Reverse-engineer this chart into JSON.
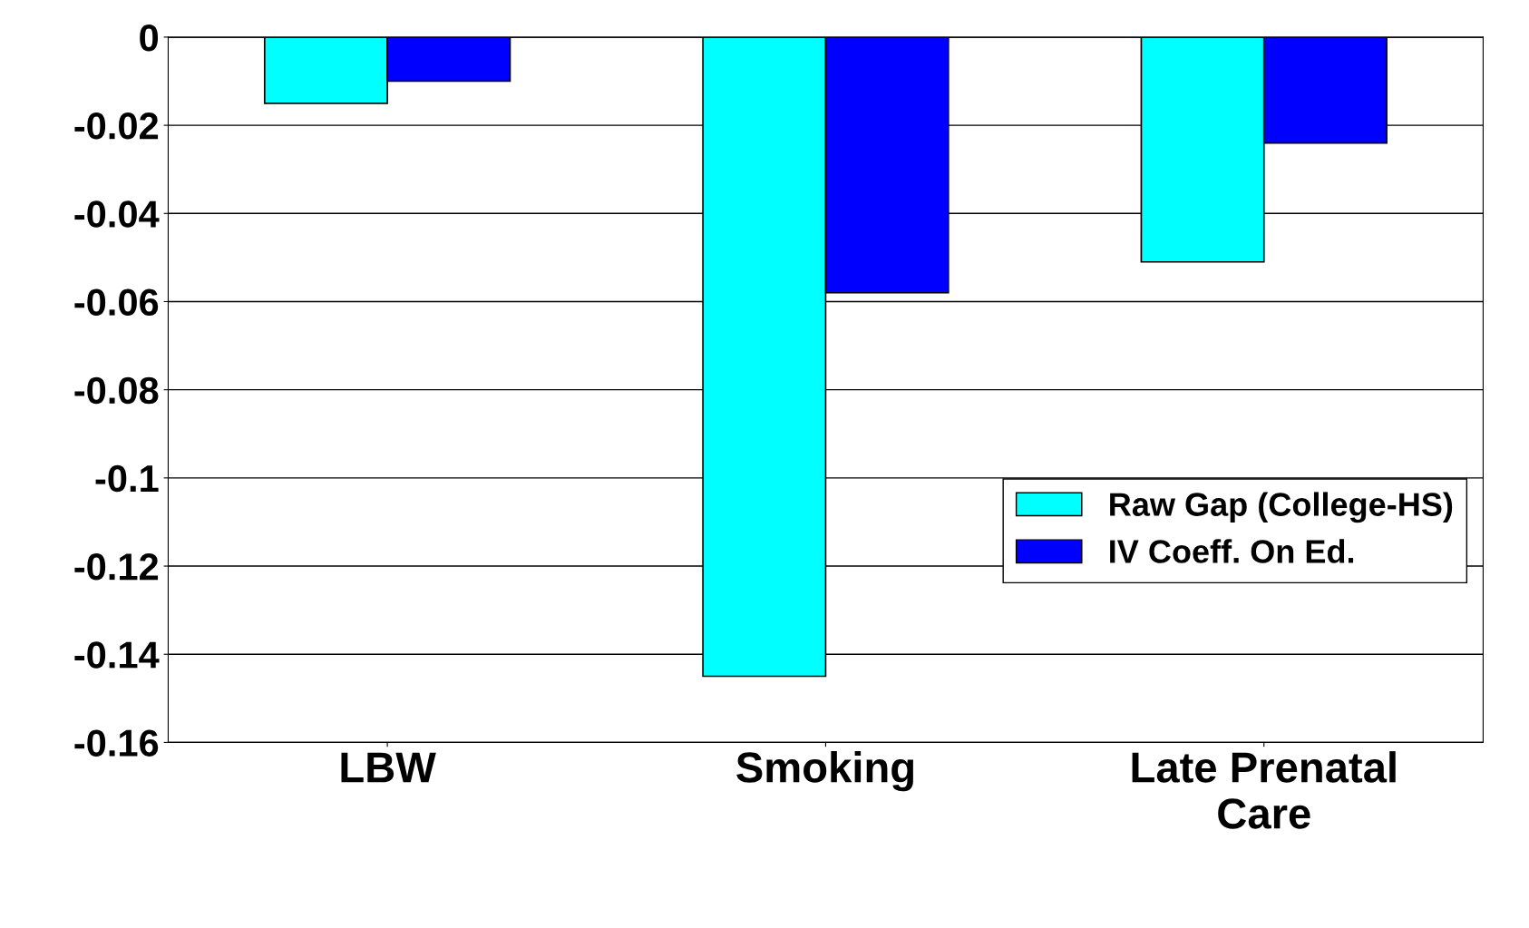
{
  "chart_data": {
    "type": "bar",
    "categories": [
      "LBW",
      "Smoking",
      "Late Prenatal\nCare"
    ],
    "series": [
      {
        "name": "Raw Gap (College-HS)",
        "color": "#00ffff",
        "values": [
          -0.015,
          -0.145,
          -0.051
        ]
      },
      {
        "name": "IV Coeff. On Ed.",
        "color": "#0000ff",
        "values": [
          -0.01,
          -0.058,
          -0.024
        ]
      }
    ],
    "ylim": [
      -0.16,
      0
    ],
    "yticks": [
      0,
      -0.02,
      -0.04,
      -0.06,
      -0.08,
      -0.1,
      -0.12,
      -0.14,
      -0.16
    ],
    "grid": "y",
    "legend": "right"
  }
}
